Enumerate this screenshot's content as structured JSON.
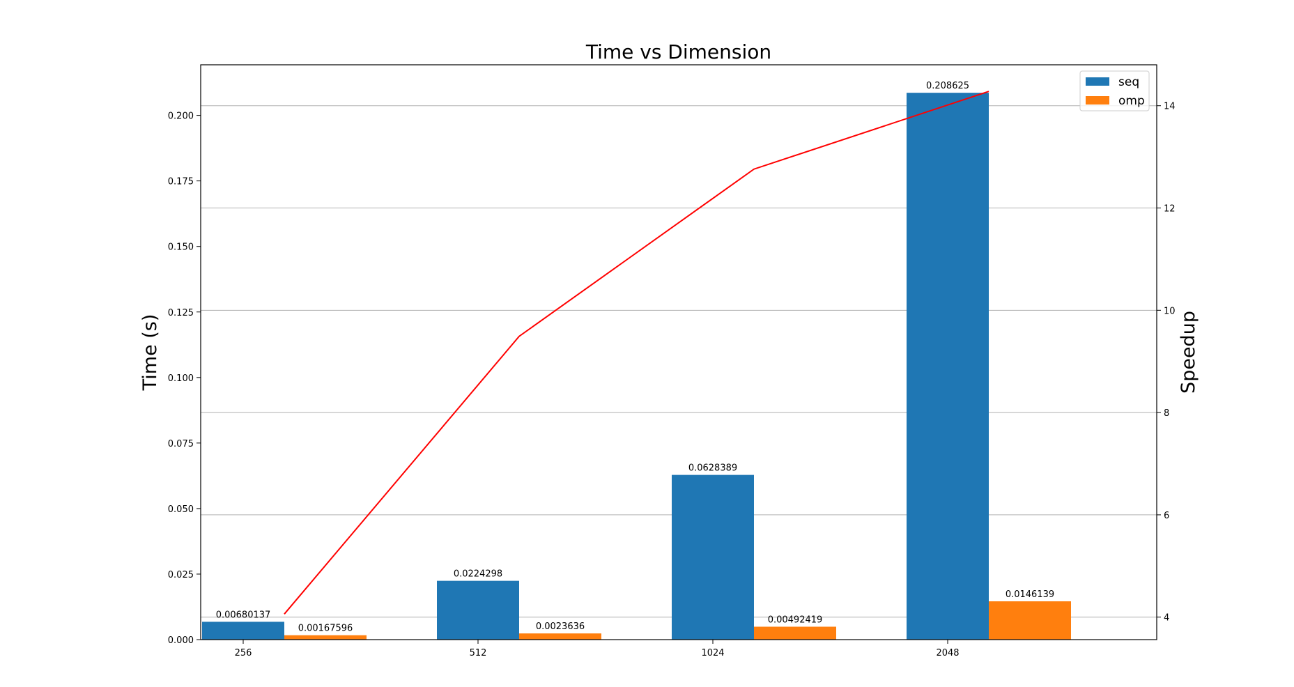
{
  "chart_data": {
    "type": "bar",
    "title": "Time vs Dimension",
    "xlabel": "",
    "ylabel": "Time (s)",
    "y2label": "Speedup",
    "categories": [
      "256",
      "512",
      "1024",
      "2048"
    ],
    "series": [
      {
        "name": "seq",
        "color": "#1f77b4",
        "values": [
          0.00680137,
          0.0224298,
          0.0628389,
          0.208625
        ],
        "labels": [
          "0.00680137",
          "0.0224298",
          "0.0628389",
          "0.208625"
        ]
      },
      {
        "name": "omp",
        "color": "#ff7f0e",
        "values": [
          0.00167596,
          0.0023636,
          0.00492419,
          0.0146139
        ],
        "labels": [
          "0.00167596",
          "0.0023636",
          "0.00492419",
          "0.0146139"
        ]
      }
    ],
    "speedup_line": {
      "color": "#ff0000",
      "values": [
        4.06,
        9.49,
        12.76,
        14.28
      ]
    },
    "ylim": [
      0,
      0.2193
    ],
    "yticks": [
      0.0,
      0.025,
      0.05,
      0.075,
      0.1,
      0.125,
      0.15,
      0.175,
      0.2
    ],
    "ytick_labels": [
      "0.000",
      "0.025",
      "0.050",
      "0.075",
      "0.100",
      "0.125",
      "0.150",
      "0.175",
      "0.200"
    ],
    "y2lim": [
      3.56,
      14.8
    ],
    "y2ticks": [
      4,
      6,
      8,
      10,
      12,
      14
    ],
    "y2tick_labels": [
      "4",
      "6",
      "8",
      "10",
      "12",
      "14"
    ],
    "grid": "horizontal (speedup axis)",
    "legend_position": "upper right"
  }
}
